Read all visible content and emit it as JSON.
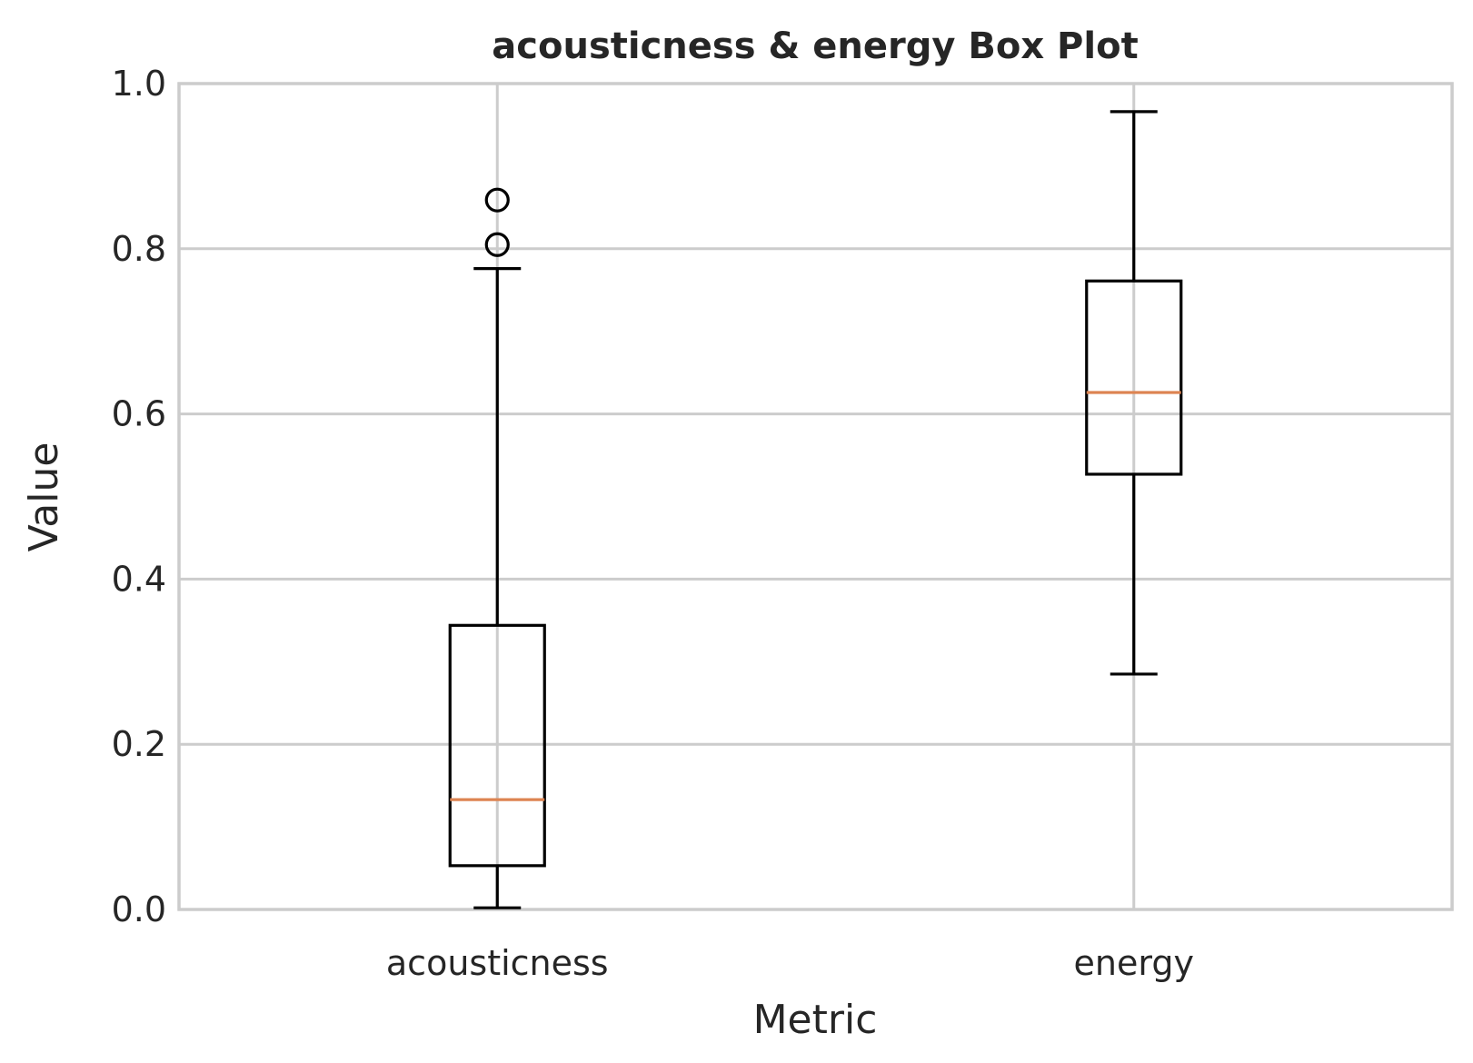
{
  "chart_data": {
    "type": "box",
    "title": "acousticness & energy Box Plot",
    "xlabel": "Metric",
    "ylabel": "Value",
    "ylim": [
      0.0,
      1.0
    ],
    "yticks": [
      0.0,
      0.2,
      0.4,
      0.6,
      0.8,
      1.0
    ],
    "ytick_labels": [
      "0.0",
      "0.2",
      "0.4",
      "0.6",
      "0.8",
      "1.0"
    ],
    "grid": true,
    "median_color": "#dd8452",
    "box_color": "#000000",
    "grid_color": "#cccccc",
    "categories": [
      "acousticness",
      "energy"
    ],
    "boxes": [
      {
        "name": "acousticness",
        "whisker_low": 0.002,
        "q1": 0.053,
        "median": 0.133,
        "q3": 0.344,
        "whisker_high": 0.776,
        "outliers": [
          0.805,
          0.859
        ]
      },
      {
        "name": "energy",
        "whisker_low": 0.285,
        "q1": 0.527,
        "median": 0.626,
        "q3": 0.761,
        "whisker_high": 0.966,
        "outliers": []
      }
    ]
  }
}
